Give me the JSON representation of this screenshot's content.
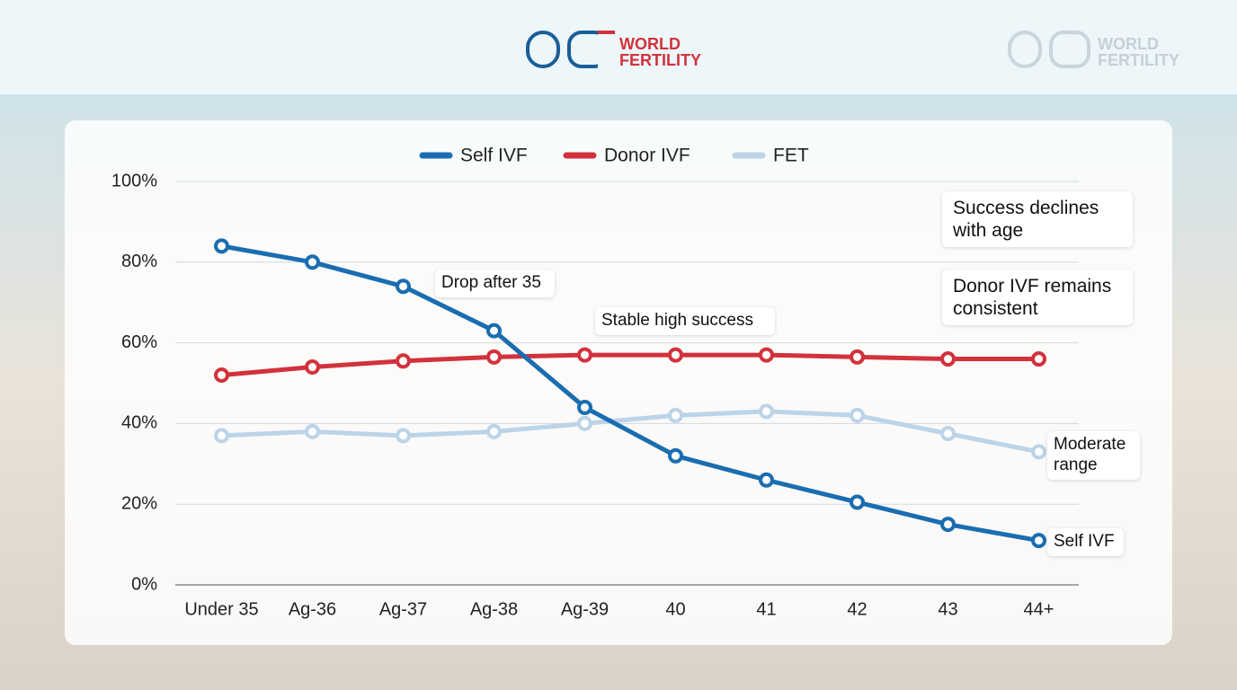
{
  "header": {
    "brand_line1": "WORLD",
    "brand_line2": "FERTILITY"
  },
  "chart_data": {
    "type": "line",
    "categories": [
      "Under 35",
      "Ag-36",
      "Ag-37",
      "Ag-38",
      "Ag-39",
      "40",
      "41",
      "42",
      "43",
      "44+"
    ],
    "series": [
      {
        "name": "Self IVF",
        "color": "#1a6db0",
        "values": [
          84,
          80,
          74,
          63,
          44,
          32,
          26,
          20.5,
          15,
          11
        ]
      },
      {
        "name": "Donor IVF",
        "color": "#d2323c",
        "values": [
          52,
          54,
          55.5,
          56.5,
          57,
          57,
          57,
          56.5,
          56,
          56
        ]
      },
      {
        "name": "FET",
        "color": "#bcd4e8",
        "values": [
          37,
          38,
          37,
          38,
          40,
          42,
          43,
          42,
          37.5,
          33
        ]
      }
    ],
    "ylim": [
      0,
      100
    ],
    "yticks": [
      {
        "value": 0,
        "label": "0%"
      },
      {
        "value": 20,
        "label": "20%"
      },
      {
        "value": 40,
        "label": "40%"
      },
      {
        "value": 60,
        "label": "60%"
      },
      {
        "value": 80,
        "label": "80%"
      },
      {
        "value": 100,
        "label": "100%"
      }
    ],
    "grid": true,
    "legend": "top",
    "annotations": [
      "Drop after 35",
      "Stable high success",
      "Success declines with age",
      "Donor IVF remains consistent",
      "Moderate range",
      "Self IVF"
    ]
  }
}
